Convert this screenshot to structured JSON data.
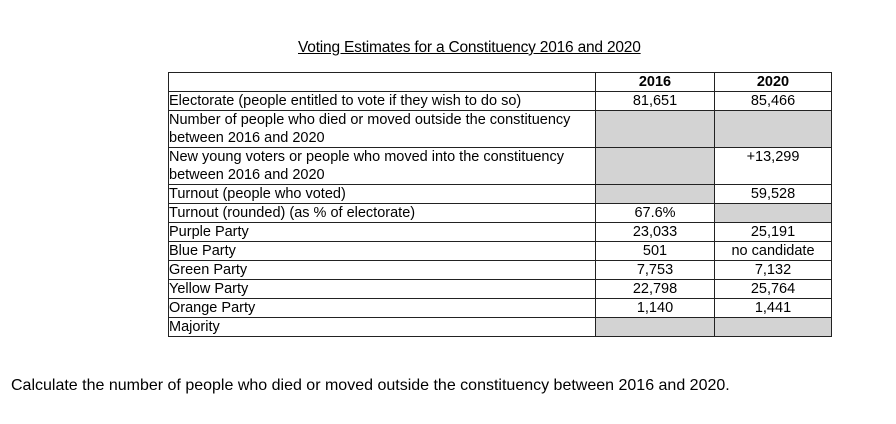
{
  "title": "Voting Estimates for a Constituency 2016 and 2020",
  "columns": [
    "2016",
    "2020"
  ],
  "rows": [
    {
      "label": "Electorate (people entitled to vote if they wish to do so)",
      "v2016": "81,651",
      "v2020": "85,466",
      "shade2016": false,
      "shade2020": false
    },
    {
      "label": "Number of people who died or moved outside the constituency between 2016 and 2020",
      "v2016": "",
      "v2020": "",
      "shade2016": true,
      "shade2020": true
    },
    {
      "label": "New young voters or people who moved into the constituency between 2016 and 2020",
      "v2016": "",
      "v2020": "+13,299",
      "shade2016": true,
      "shade2020": false
    },
    {
      "label": "Turnout (people who voted)",
      "v2016": "",
      "v2020": "59,528",
      "shade2016": true,
      "shade2020": false
    },
    {
      "label": "Turnout (rounded) (as % of electorate)",
      "v2016": "67.6%",
      "v2020": "",
      "shade2016": false,
      "shade2020": true
    },
    {
      "label": "Purple Party",
      "v2016": "23,033",
      "v2020": "25,191",
      "shade2016": false,
      "shade2020": false
    },
    {
      "label": "Blue Party",
      "v2016": "501",
      "v2020": "no candidate",
      "shade2016": false,
      "shade2020": false
    },
    {
      "label": "Green Party",
      "v2016": "7,753",
      "v2020": "7,132",
      "shade2016": false,
      "shade2020": false
    },
    {
      "label": "Yellow Party",
      "v2016": "22,798",
      "v2020": "25,764",
      "shade2016": false,
      "shade2020": false
    },
    {
      "label": "Orange Party",
      "v2016": "1,140",
      "v2020": "1,441",
      "shade2016": false,
      "shade2020": false
    },
    {
      "label": "Majority",
      "v2016": "",
      "v2020": "",
      "shade2016": true,
      "shade2020": true
    }
  ],
  "question": "Calculate the number of people who died or moved outside the constituency between 2016 and 2020.",
  "colors": {
    "shade": "#d3d3d3",
    "border": "#222222",
    "text": "#000000"
  }
}
